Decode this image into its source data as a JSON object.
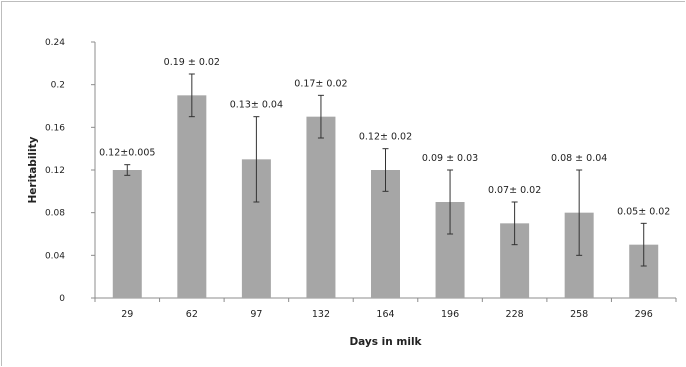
{
  "chart_data": {
    "type": "bar",
    "xlabel": "Days in milk",
    "ylabel": "Heritability",
    "ylim": [
      0,
      0.24
    ],
    "yticks": [
      "0",
      "0.04",
      "0.08",
      "0.12",
      "0.16",
      "0.2",
      "0.24"
    ],
    "yticks_values": [
      0,
      0.04,
      0.08,
      0.12,
      0.16,
      0.2,
      0.24
    ],
    "grid": false,
    "bar_color": "#a6a6a6",
    "categories": [
      "29",
      "62",
      "97",
      "132",
      "164",
      "196",
      "228",
      "258",
      "296"
    ],
    "values": [
      0.12,
      0.19,
      0.13,
      0.17,
      0.12,
      0.09,
      0.07,
      0.08,
      0.05
    ],
    "errors": [
      0.005,
      0.02,
      0.04,
      0.02,
      0.02,
      0.03,
      0.02,
      0.04,
      0.02
    ],
    "data_labels": [
      "0.12±0.005",
      "0.19 ± 0.02",
      "0.13± 0.04",
      "0.17± 0.02",
      "0.12± 0.02",
      "0.09 ± 0.03",
      "0.07± 0.02",
      "0.08 ± 0.04",
      "0.05± 0.02"
    ]
  }
}
